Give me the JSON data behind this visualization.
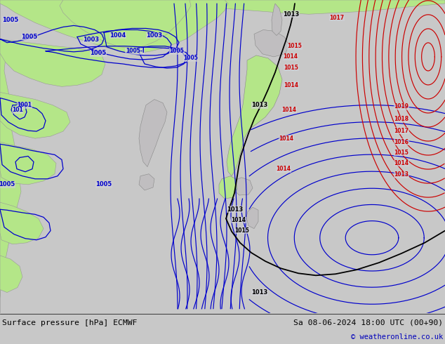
{
  "title_left": "Surface pressure [hPa] ECMWF",
  "title_right": "Sa 08-06-2024 18:00 UTC (00+90)",
  "copyright": "© weatheronline.co.uk",
  "bg_color": "#c8c8c8",
  "land_green": "#b4e688",
  "land_gray": "#c0bec0",
  "sea_color": "#d0d0d8",
  "blue": "#0000cc",
  "red": "#cc0000",
  "black": "#000000",
  "white": "#ffffff",
  "figwidth": 6.34,
  "figheight": 4.9,
  "dpi": 100
}
